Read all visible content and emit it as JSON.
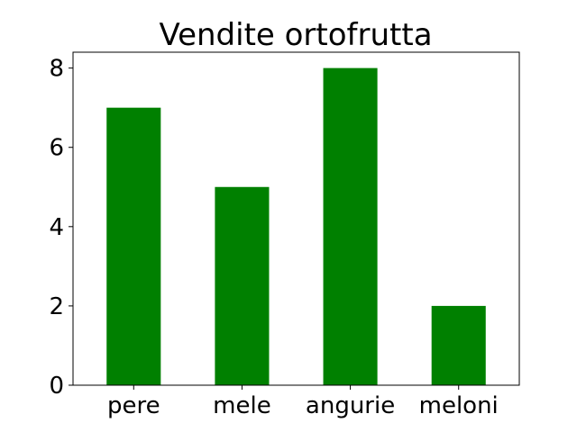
{
  "chart_data": {
    "type": "bar",
    "title": "Vendite ortofrutta",
    "xlabel": "",
    "ylabel": "",
    "categories": [
      "pere",
      "mele",
      "angurie",
      "meloni"
    ],
    "values": [
      7,
      5,
      8,
      2
    ],
    "ylim": [
      0,
      8.4
    ],
    "yticks": [
      "0",
      "2",
      "4",
      "6",
      "8"
    ],
    "bar_color": "#008000",
    "grid": false,
    "legend": "none"
  }
}
